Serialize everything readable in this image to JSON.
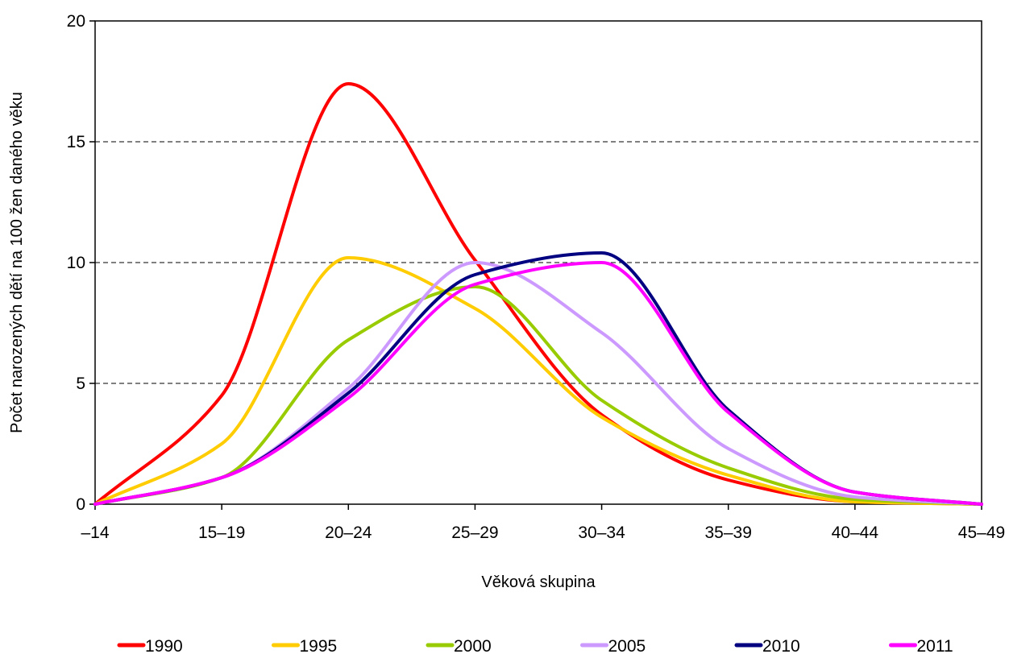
{
  "chart_data": {
    "type": "line",
    "title": "",
    "xlabel": "Věková skupina",
    "ylabel": "Počet narozených dětí na 100 žen daného věku",
    "categories": [
      "–14",
      "15–19",
      "20–24",
      "25–29",
      "30–34",
      "35–39",
      "40–44",
      "45–49"
    ],
    "ylim": [
      0,
      20
    ],
    "yticks": [
      0,
      5,
      10,
      15,
      20
    ],
    "grid": "horizontal dashed",
    "legend_position": "bottom",
    "series": [
      {
        "name": "1990",
        "color": "#ff0000",
        "values": [
          0,
          4.5,
          17.4,
          10.1,
          3.7,
          1.0,
          0.1,
          0
        ]
      },
      {
        "name": "1995",
        "color": "#ffcc00",
        "values": [
          0,
          2.5,
          10.2,
          8.1,
          3.6,
          1.2,
          0.1,
          0
        ]
      },
      {
        "name": "2000",
        "color": "#99cc00",
        "values": [
          0,
          1.1,
          6.8,
          9.0,
          4.3,
          1.5,
          0.2,
          0
        ]
      },
      {
        "name": "2005",
        "color": "#cc99ff",
        "values": [
          0,
          1.1,
          4.8,
          10.0,
          7.1,
          2.3,
          0.3,
          0
        ]
      },
      {
        "name": "2010",
        "color": "#000080",
        "values": [
          0,
          1.1,
          4.6,
          9.5,
          10.4,
          3.9,
          0.5,
          0
        ]
      },
      {
        "name": "2011",
        "color": "#ff00ff",
        "values": [
          0,
          1.1,
          4.4,
          9.1,
          10.0,
          3.8,
          0.5,
          0
        ]
      }
    ]
  }
}
